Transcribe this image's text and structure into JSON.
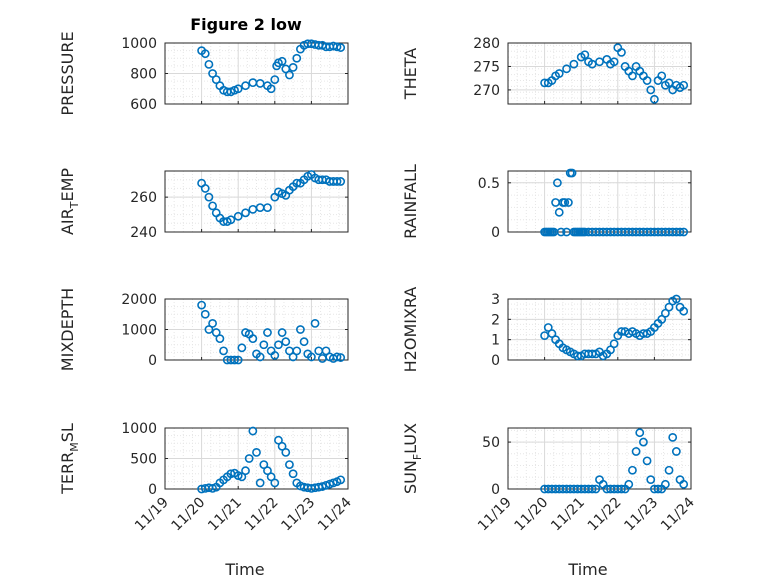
{
  "figure": {
    "title": "Figure 2 low",
    "marker_color": "#0072BD"
  },
  "chart_data": [
    {
      "type": "scatter",
      "ylabel": "PRESSURE",
      "ylim": [
        600,
        1000
      ],
      "yticks": [
        "600",
        "800",
        "1000"
      ],
      "grid": true,
      "x": [
        0.0,
        0.1,
        0.2,
        0.3,
        0.4,
        0.5,
        0.6,
        0.7,
        0.8,
        0.9,
        1.0,
        1.2,
        1.4,
        1.6,
        1.8,
        1.9,
        2.0,
        2.05,
        2.1,
        2.2,
        2.3,
        2.4,
        2.5,
        2.6,
        2.7,
        2.8,
        2.9,
        3.0,
        3.1,
        3.2,
        3.3,
        3.4,
        3.5,
        3.6,
        3.7,
        3.8
      ],
      "y": [
        950,
        930,
        860,
        800,
        760,
        720,
        690,
        680,
        680,
        690,
        700,
        720,
        740,
        735,
        720,
        700,
        760,
        850,
        870,
        880,
        830,
        790,
        840,
        900,
        960,
        985,
        995,
        995,
        990,
        985,
        985,
        975,
        975,
        980,
        975,
        970
      ]
    },
    {
      "type": "scatter",
      "ylabel": "THETA",
      "ylim": [
        267,
        280
      ],
      "yticks": [
        "270",
        "275",
        "280"
      ],
      "grid": true,
      "x": [
        0.0,
        0.1,
        0.2,
        0.3,
        0.4,
        0.6,
        0.8,
        1.0,
        1.1,
        1.2,
        1.3,
        1.5,
        1.7,
        1.8,
        1.9,
        2.0,
        2.1,
        2.2,
        2.3,
        2.4,
        2.5,
        2.6,
        2.7,
        2.8,
        2.9,
        3.0,
        3.1,
        3.2,
        3.3,
        3.4,
        3.5,
        3.6,
        3.7,
        3.8
      ],
      "y": [
        271.5,
        271.5,
        272,
        273,
        273.5,
        274.5,
        275.5,
        277,
        277.5,
        276,
        275.5,
        276,
        276.5,
        275.5,
        276,
        279,
        278,
        275,
        274,
        273,
        275,
        274,
        273,
        272,
        270,
        268,
        272,
        273,
        271,
        271.5,
        270,
        271,
        270.5,
        271
      ]
    },
    {
      "type": "scatter",
      "ylabel": "AIR_TEMP",
      "ylim": [
        240,
        275
      ],
      "yticks": [
        "240",
        "260"
      ],
      "grid": true,
      "x": [
        0.0,
        0.1,
        0.2,
        0.3,
        0.4,
        0.5,
        0.6,
        0.7,
        0.8,
        1.0,
        1.2,
        1.4,
        1.6,
        1.8,
        2.0,
        2.1,
        2.2,
        2.3,
        2.4,
        2.5,
        2.6,
        2.7,
        2.8,
        2.9,
        3.0,
        3.1,
        3.2,
        3.3,
        3.4,
        3.5,
        3.6,
        3.7,
        3.8
      ],
      "y": [
        268,
        265,
        260,
        255,
        251,
        248,
        246,
        246,
        247,
        249,
        251,
        253,
        254,
        254,
        260,
        263,
        262,
        261,
        264,
        266,
        268,
        268,
        270,
        272,
        273,
        271,
        270,
        270,
        270,
        269,
        269,
        269,
        269
      ]
    },
    {
      "type": "scatter",
      "ylabel": "RAINFALL",
      "ylim": [
        0,
        0.62
      ],
      "yticks": [
        "0",
        "0.5"
      ],
      "grid": true,
      "x": [
        0.0,
        0.05,
        0.1,
        0.15,
        0.2,
        0.25,
        0.3,
        0.35,
        0.4,
        0.45,
        0.5,
        0.55,
        0.6,
        0.65,
        0.7,
        0.75,
        0.8,
        0.85,
        0.9,
        0.95,
        1.0,
        1.05,
        1.1,
        1.2,
        1.3,
        1.4,
        1.5,
        1.6,
        1.7,
        1.8,
        1.9,
        2.0,
        2.1,
        2.2,
        2.3,
        2.4,
        2.5,
        2.6,
        2.7,
        2.8,
        2.9,
        3.0,
        3.1,
        3.2,
        3.3,
        3.4,
        3.5,
        3.6,
        3.7,
        3.8
      ],
      "y": [
        0,
        0,
        0,
        0,
        0,
        0,
        0.3,
        0.5,
        0.2,
        0,
        0.3,
        0.3,
        0,
        0.3,
        0.6,
        0.6,
        0,
        0,
        0,
        0,
        0,
        0,
        0,
        0,
        0,
        0,
        0,
        0,
        0,
        0,
        0,
        0,
        0,
        0,
        0,
        0,
        0,
        0,
        0,
        0,
        0,
        0,
        0,
        0,
        0,
        0,
        0,
        0,
        0,
        0
      ]
    },
    {
      "type": "scatter",
      "ylabel": "MIXDEPTH",
      "ylim": [
        0,
        2000
      ],
      "yticks": [
        "0",
        "1000",
        "2000"
      ],
      "grid": true,
      "x": [
        0.0,
        0.1,
        0.2,
        0.3,
        0.4,
        0.5,
        0.6,
        0.7,
        0.8,
        0.9,
        1.0,
        1.1,
        1.2,
        1.3,
        1.4,
        1.5,
        1.6,
        1.7,
        1.8,
        1.9,
        2.0,
        2.1,
        2.2,
        2.3,
        2.4,
        2.5,
        2.6,
        2.7,
        2.8,
        2.9,
        3.0,
        3.1,
        3.2,
        3.3,
        3.4,
        3.5,
        3.6,
        3.7,
        3.8
      ],
      "y": [
        1800,
        1500,
        1000,
        1200,
        900,
        700,
        300,
        0,
        0,
        0,
        0,
        400,
        900,
        850,
        700,
        200,
        100,
        500,
        900,
        300,
        150,
        500,
        900,
        600,
        300,
        100,
        300,
        1000,
        600,
        200,
        100,
        1200,
        300,
        50,
        300,
        100,
        50,
        100,
        80
      ]
    },
    {
      "type": "scatter",
      "ylabel": "H2OMIXRA",
      "ylim": [
        0,
        3
      ],
      "yticks": [
        "0",
        "1",
        "2",
        "3"
      ],
      "grid": true,
      "x": [
        0.0,
        0.1,
        0.2,
        0.3,
        0.4,
        0.5,
        0.6,
        0.7,
        0.8,
        0.9,
        1.0,
        1.1,
        1.2,
        1.3,
        1.4,
        1.5,
        1.6,
        1.7,
        1.8,
        1.9,
        2.0,
        2.1,
        2.2,
        2.3,
        2.4,
        2.5,
        2.6,
        2.7,
        2.8,
        2.9,
        3.0,
        3.1,
        3.2,
        3.3,
        3.4,
        3.5,
        3.6,
        3.7,
        3.8
      ],
      "y": [
        1.2,
        1.6,
        1.3,
        1.0,
        0.8,
        0.6,
        0.5,
        0.4,
        0.3,
        0.2,
        0.2,
        0.3,
        0.3,
        0.3,
        0.3,
        0.4,
        0.2,
        0.3,
        0.5,
        0.8,
        1.2,
        1.4,
        1.4,
        1.3,
        1.4,
        1.3,
        1.2,
        1.3,
        1.3,
        1.4,
        1.6,
        1.8,
        2.0,
        2.3,
        2.6,
        2.9,
        3.0,
        2.6,
        2.4
      ]
    },
    {
      "type": "scatter",
      "ylabel": "TERR_MSL",
      "ylim": [
        0,
        1000
      ],
      "yticks": [
        "0",
        "500",
        "1000"
      ],
      "grid": true,
      "x": [
        0.0,
        0.1,
        0.2,
        0.3,
        0.4,
        0.5,
        0.6,
        0.7,
        0.8,
        0.9,
        1.0,
        1.1,
        1.2,
        1.3,
        1.4,
        1.5,
        1.6,
        1.7,
        1.8,
        1.9,
        2.0,
        2.1,
        2.2,
        2.3,
        2.4,
        2.5,
        2.6,
        2.7,
        2.8,
        2.9,
        3.0,
        3.1,
        3.2,
        3.3,
        3.4,
        3.5,
        3.6,
        3.7,
        3.8
      ],
      "y": [
        0,
        10,
        20,
        10,
        30,
        100,
        150,
        200,
        250,
        260,
        220,
        200,
        300,
        500,
        950,
        600,
        100,
        400,
        300,
        200,
        100,
        800,
        700,
        600,
        400,
        250,
        100,
        50,
        30,
        20,
        10,
        20,
        30,
        40,
        60,
        80,
        100,
        120,
        150
      ]
    },
    {
      "type": "scatter",
      "ylabel": "SUN_FLUX",
      "ylim": [
        0,
        65
      ],
      "yticks": [
        "0",
        "50"
      ],
      "grid": true,
      "x": [
        0.0,
        0.1,
        0.2,
        0.3,
        0.4,
        0.5,
        0.6,
        0.7,
        0.8,
        0.9,
        1.0,
        1.1,
        1.2,
        1.3,
        1.4,
        1.5,
        1.6,
        1.7,
        1.8,
        1.9,
        2.0,
        2.1,
        2.2,
        2.3,
        2.4,
        2.5,
        2.6,
        2.7,
        2.8,
        2.9,
        3.0,
        3.1,
        3.2,
        3.3,
        3.4,
        3.5,
        3.6,
        3.7,
        3.8
      ],
      "y": [
        0,
        0,
        0,
        0,
        0,
        0,
        0,
        0,
        0,
        0,
        0,
        0,
        0,
        0,
        0,
        10,
        5,
        0,
        0,
        0,
        0,
        0,
        0,
        5,
        20,
        40,
        60,
        50,
        30,
        10,
        0,
        0,
        0,
        5,
        20,
        55,
        40,
        10,
        5
      ]
    }
  ],
  "x_axis": {
    "ticks": [
      "11/19",
      "11/20",
      "11/21",
      "11/22",
      "11/23",
      "11/24"
    ],
    "label": "Time"
  },
  "ylabel_parts": [
    {
      "main": "PRESSURE"
    },
    {
      "main": "THETA"
    },
    {
      "main": "AIR",
      "sub": "T",
      "rest": "EMP"
    },
    {
      "main": "RAINFALL"
    },
    {
      "main": "MIXDEPTH"
    },
    {
      "main": "H2OMIXRA"
    },
    {
      "main": "TERR",
      "sub": "M",
      "rest": "SL"
    },
    {
      "main": "SUN",
      "sub": "F",
      "rest": "LUX"
    }
  ]
}
